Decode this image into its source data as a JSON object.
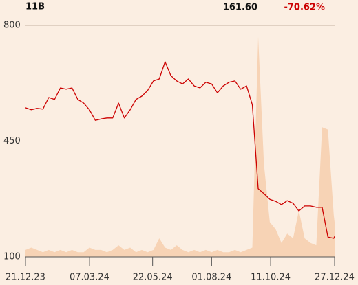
{
  "header": {
    "ticker": "11B",
    "price": "161.60",
    "change": "-70.62%"
  },
  "chart_data": {
    "type": "line",
    "x": [
      "21.12.23",
      "28.12.23",
      "04.01.24",
      "11.01.24",
      "18.01.24",
      "25.01.24",
      "01.02.24",
      "08.02.24",
      "15.02.24",
      "22.02.24",
      "29.02.24",
      "07.03.24",
      "14.03.24",
      "21.03.24",
      "28.03.24",
      "04.04.24",
      "11.04.24",
      "18.04.24",
      "25.04.24",
      "02.05.24",
      "09.05.24",
      "16.05.24",
      "23.05.24",
      "30.05.24",
      "06.06.24",
      "13.06.24",
      "20.06.24",
      "27.06.24",
      "04.07.24",
      "11.07.24",
      "18.07.24",
      "25.07.24",
      "01.08.24",
      "08.08.24",
      "15.08.24",
      "22.08.24",
      "29.08.24",
      "05.09.24",
      "12.09.24",
      "19.09.24",
      "26.09.24",
      "03.10.24",
      "10.10.24",
      "17.10.24",
      "24.10.24",
      "31.10.24",
      "07.11.24",
      "14.11.24",
      "21.11.24",
      "28.11.24",
      "05.12.24",
      "12.12.24",
      "19.12.24",
      "26.12.24",
      "27.12.24"
    ],
    "series": [
      {
        "color": "#cc0000",
        "values": [
          551,
          545,
          549,
          547,
          582,
          576,
          611,
          607,
          611,
          576,
          565,
          545,
          513,
          517,
          520,
          520,
          565,
          520,
          545,
          576,
          586,
          603,
          632,
          638,
          690,
          648,
          632,
          623,
          638,
          617,
          611,
          628,
          623,
          596,
          617,
          628,
          632,
          607,
          617,
          560,
          306,
          291,
          274,
          268,
          258,
          270,
          262,
          239,
          254,
          254,
          250,
          250,
          160,
          156,
          161.6
        ]
      },
      {
        "color": "#f7d3b5",
        "axis": "y2",
        "values": [
          3,
          4,
          3,
          2,
          3,
          2,
          3,
          2,
          3,
          2,
          2,
          4,
          3,
          3,
          2,
          3,
          5,
          3,
          4,
          2,
          3,
          2,
          3,
          8,
          4,
          3,
          5,
          3,
          2,
          3,
          2,
          3,
          2,
          3,
          2,
          2,
          3,
          2,
          3,
          4,
          95,
          40,
          15,
          12,
          6,
          10,
          8,
          20,
          8,
          6,
          5,
          56,
          55,
          18,
          15
        ]
      }
    ],
    "xlim": [
      "21.12.23",
      "27.12.24"
    ],
    "xticks": [
      "21.12.23",
      "07.03.24",
      "22.05.24",
      "01.08.24",
      "11.10.24",
      "27.12.24"
    ],
    "ylim": [
      100,
      800
    ],
    "yticks": [
      100,
      450,
      800
    ],
    "y2lim": [
      0,
      100
    ],
    "grid": true
  }
}
